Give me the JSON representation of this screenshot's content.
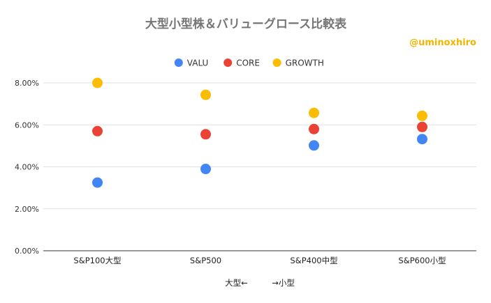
{
  "chart_data": {
    "type": "scatter",
    "title": "大型小型株＆バリューグロース比較表",
    "watermark": "@uminoxhiro",
    "categories": [
      "S&P100大型",
      "S&P500",
      "S&P400中型",
      "S&P600小型"
    ],
    "xlabel": "大型←　　　→小型",
    "ylabel": "",
    "ylim": [
      0,
      0.08
    ],
    "yticks": [
      0,
      0.02,
      0.04,
      0.06,
      0.08
    ],
    "ytick_labels": [
      "0.00%",
      "2.00%",
      "4.00%",
      "6.00%",
      "8.00%"
    ],
    "legend_position": "top-center",
    "grid": true,
    "series": [
      {
        "name": "VALU",
        "color": "#4285f4",
        "values": [
          0.0325,
          0.039,
          0.0502,
          0.0532
        ]
      },
      {
        "name": "CORE",
        "color": "#ea4335",
        "values": [
          0.057,
          0.0555,
          0.058,
          0.059
        ]
      },
      {
        "name": "GROWTH",
        "color": "#fbbc04",
        "values": [
          0.08,
          0.0743,
          0.0657,
          0.0643
        ]
      }
    ]
  }
}
